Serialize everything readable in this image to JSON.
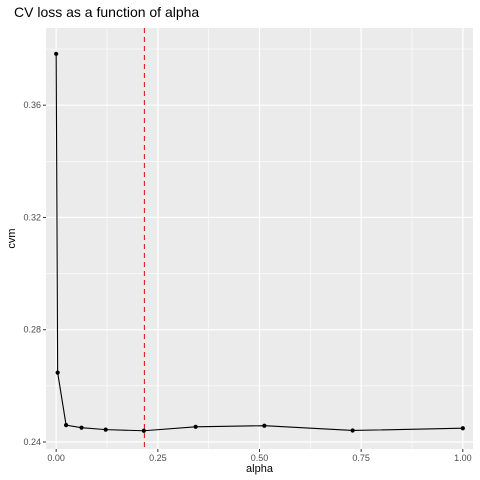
{
  "chart_data": {
    "type": "line",
    "title": "CV loss as a function of alpha",
    "xlabel": "alpha",
    "ylabel": "cvm",
    "xlim": [
      -0.025,
      1.025
    ],
    "ylim": [
      0.2375,
      0.3875
    ],
    "x_ticks": [
      0.0,
      0.25,
      0.5,
      0.75,
      1.0
    ],
    "x_tick_labels": [
      "0.00",
      "0.25",
      "0.50",
      "0.75",
      "1.00"
    ],
    "y_ticks": [
      0.24,
      0.28,
      0.32,
      0.36
    ],
    "y_tick_labels": [
      "0.24",
      "0.28",
      "0.32",
      "0.36"
    ],
    "x_minor": [
      0.125,
      0.375,
      0.625,
      0.875
    ],
    "y_minor": [
      0.26,
      0.3,
      0.34,
      0.38
    ],
    "series": [
      {
        "x": [
          0.0,
          0.0037,
          0.0244,
          0.0624,
          0.1218,
          0.2156,
          0.343,
          0.512,
          0.729,
          1.0
        ],
        "y": [
          0.3783,
          0.2647,
          0.246,
          0.2451,
          0.2444,
          0.244,
          0.2454,
          0.2458,
          0.2441,
          0.2449
        ]
      }
    ],
    "vline": {
      "x": 0.217,
      "color": "#e41a1c",
      "style": "dashed"
    },
    "grid": true,
    "panel_background": "#ebebeb",
    "line_color": "#000000"
  }
}
